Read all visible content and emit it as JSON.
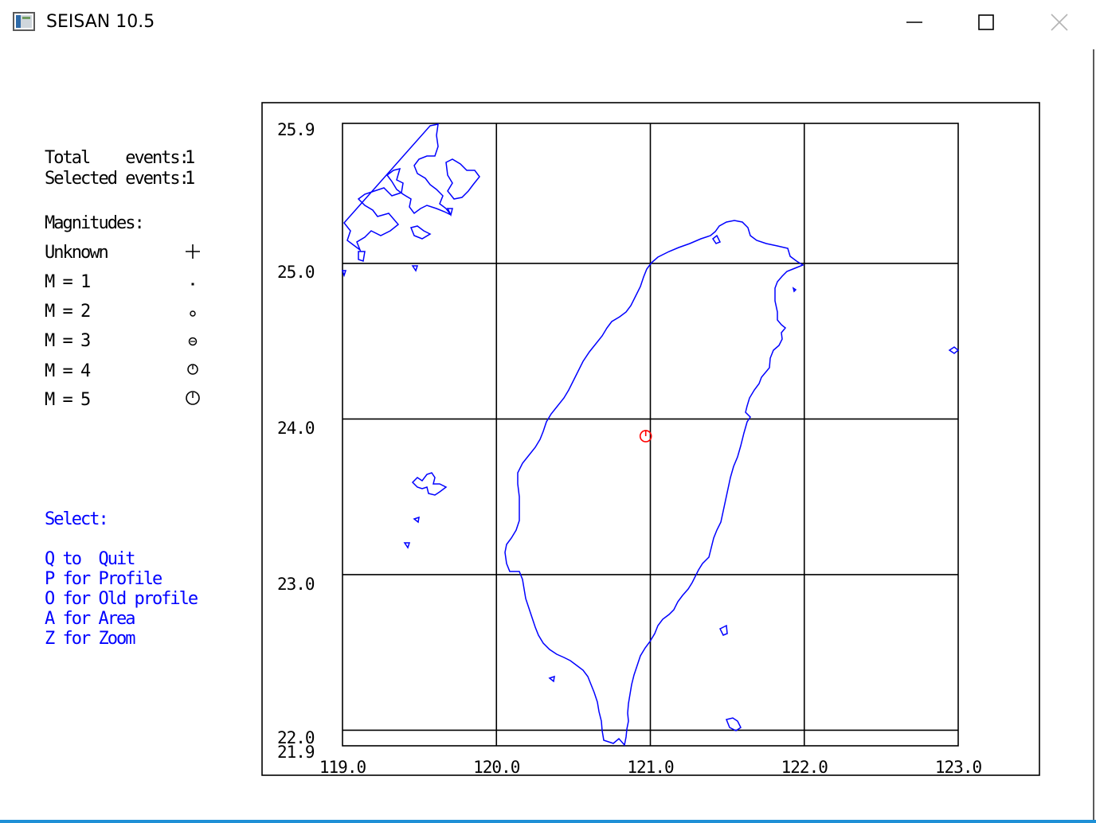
{
  "window": {
    "title": "SEISAN 10.5",
    "icon": "app-window-icon",
    "controls": {
      "minimize": "minimize-icon",
      "maximize": "maximize-icon",
      "close": "close-icon"
    }
  },
  "info": {
    "total_label": "Total    events:",
    "total_value": "1",
    "selected_label": "Selected events:",
    "selected_value": "1",
    "magnitudes_heading": "Magnitudes:",
    "magnitudes": [
      {
        "label": "Unknown",
        "symbol": "plus-icon"
      },
      {
        "label": "M = 1",
        "symbol": "dot-icon"
      },
      {
        "label": "M = 2",
        "symbol": "small-circle-icon"
      },
      {
        "label": "M = 3",
        "symbol": "circle-icon"
      },
      {
        "label": "M = 4",
        "symbol": "circle-tick-icon"
      },
      {
        "label": "M = 5",
        "symbol": "large-circle-tick-icon"
      }
    ]
  },
  "select": {
    "heading": "Select:",
    "options": [
      "Q to  Quit",
      "P for Profile",
      "O for Old profile",
      "A for Area",
      "Z for Zoom"
    ]
  },
  "map": {
    "lon_labels": [
      "119.0",
      "120.0",
      "121.0",
      "122.0",
      "123.0"
    ],
    "lat_labels": [
      "25.9",
      "25.0",
      "24.0",
      "23.0",
      "22.0",
      "21.9"
    ],
    "lon_range": [
      119.0,
      123.0
    ],
    "lat_range": [
      21.9,
      25.9
    ],
    "grid_lons": [
      120.0,
      121.0,
      122.0
    ],
    "grid_lats": [
      25.0,
      24.0,
      23.0,
      22.0
    ],
    "coastline_color": "#0000ff",
    "grid_color": "#000000",
    "event_color": "#ff0000",
    "events": [
      {
        "lon": 120.97,
        "lat": 23.89,
        "magnitude_symbol": "circle-tick-icon"
      }
    ]
  }
}
